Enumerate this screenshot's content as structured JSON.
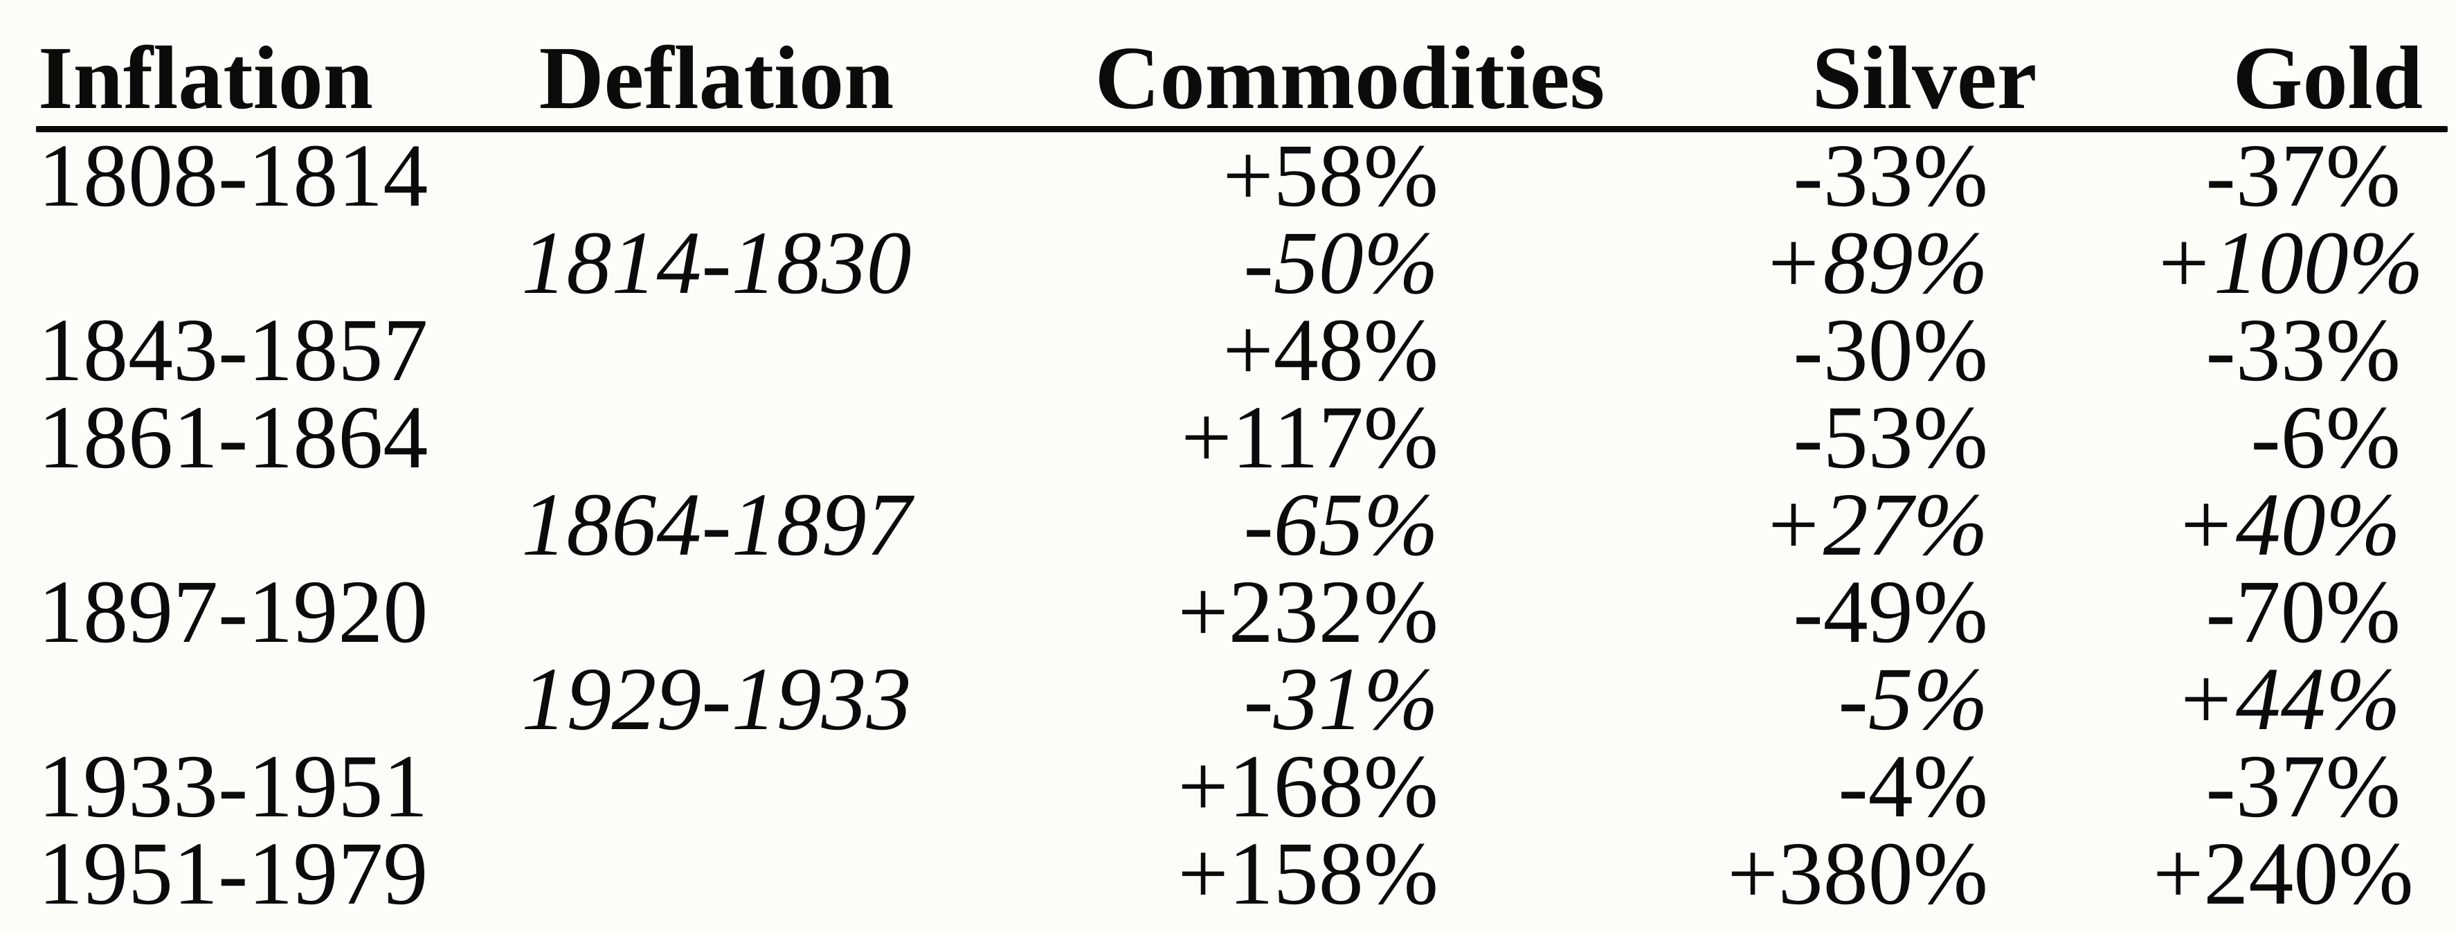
{
  "colors": {
    "ink": "#0b0b0b",
    "paper": "#fcfcf8"
  },
  "table": {
    "headers": {
      "inflation": "Inflation",
      "deflation": "Deflation",
      "commodities": "Commodities",
      "silver": "Silver",
      "gold": "Gold"
    },
    "rows": [
      {
        "inflation": "1808-1814",
        "deflation": "",
        "commodities": "+58%",
        "silver": "-33%",
        "gold": "-37%"
      },
      {
        "inflation": "",
        "deflation": "1814-1830",
        "commodities": "-50%",
        "silver": "+89%",
        "gold": "+100%"
      },
      {
        "inflation": "1843-1857",
        "deflation": "",
        "commodities": "+48%",
        "silver": "-30%",
        "gold": "-33%"
      },
      {
        "inflation": "1861-1864",
        "deflation": "",
        "commodities": "+117%",
        "silver": "-53%",
        "gold": "-6%"
      },
      {
        "inflation": "",
        "deflation": "1864-1897",
        "commodities": "-65%",
        "silver": "+27%",
        "gold": "+40%"
      },
      {
        "inflation": "1897-1920",
        "deflation": "",
        "commodities": "+232%",
        "silver": "-49%",
        "gold": "-70%"
      },
      {
        "inflation": "",
        "deflation": "1929-1933",
        "commodities": "-31%",
        "silver": "-5%",
        "gold": "+44%"
      },
      {
        "inflation": "1933-1951",
        "deflation": "",
        "commodities": "+168%",
        "silver": "-4%",
        "gold": "-37%"
      },
      {
        "inflation": "1951-1979",
        "deflation": "",
        "commodities": "+158%",
        "silver": "+380%",
        "gold": "+240%"
      }
    ]
  },
  "chart_data": {
    "type": "table",
    "columns": [
      "Inflation",
      "Deflation",
      "Commodities",
      "Silver",
      "Gold"
    ],
    "rows": [
      [
        "1808-1814",
        "",
        "+58%",
        "-33%",
        "-37%"
      ],
      [
        "",
        "1814-1830",
        "-50%",
        "+89%",
        "+100%"
      ],
      [
        "1843-1857",
        "",
        "+48%",
        "-30%",
        "-33%"
      ],
      [
        "1861-1864",
        "",
        "+117%",
        "-53%",
        "-6%"
      ],
      [
        "",
        "1864-1897",
        "-65%",
        "+27%",
        "+40%"
      ],
      [
        "1897-1920",
        "",
        "+232%",
        "-49%",
        "-70%"
      ],
      [
        "",
        "1929-1933",
        "-31%",
        "-5%",
        "+44%"
      ],
      [
        "1933-1951",
        "",
        "+168%",
        "-4%",
        "-37%"
      ],
      [
        "1951-1979",
        "",
        "+158%",
        "+380%",
        "+240%"
      ]
    ]
  }
}
